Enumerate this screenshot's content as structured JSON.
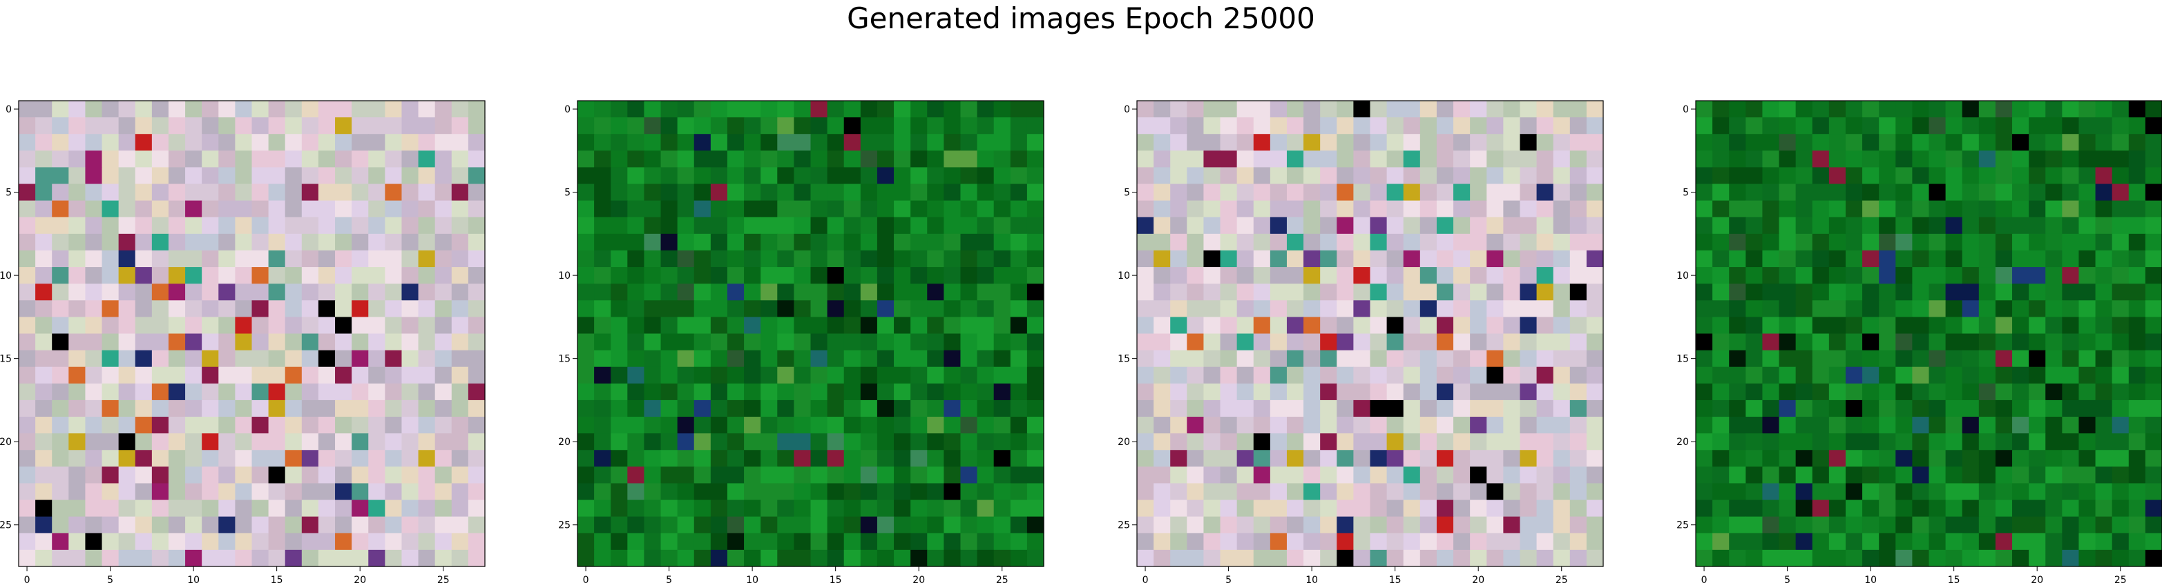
{
  "figure": {
    "suptitle": "Generated images Epoch 25000"
  },
  "chart_data": {
    "type": "heatmap",
    "title": "Generated images Epoch 25000",
    "panels": [
      {
        "name": "",
        "image_size": 28,
        "palette": "pastel",
        "xticks": [
          "0",
          "5",
          "10",
          "15",
          "20",
          "25"
        ],
        "yticks": [
          "0",
          "5",
          "10",
          "15",
          "20",
          "25"
        ],
        "xlim": [
          -0.5,
          27.5
        ],
        "ylim": [
          27.5,
          -0.5
        ]
      },
      {
        "name": "",
        "image_size": 28,
        "palette": "green",
        "xticks": [
          "0",
          "5",
          "10",
          "15",
          "20",
          "25"
        ],
        "yticks": [
          "0",
          "5",
          "10",
          "15",
          "20",
          "25"
        ],
        "xlim": [
          -0.5,
          27.5
        ],
        "ylim": [
          27.5,
          -0.5
        ]
      },
      {
        "name": "",
        "image_size": 28,
        "palette": "pastel",
        "xticks": [
          "0",
          "5",
          "10",
          "15",
          "20",
          "25"
        ],
        "yticks": [
          "0",
          "5",
          "10",
          "15",
          "20",
          "25"
        ],
        "xlim": [
          -0.5,
          27.5
        ],
        "ylim": [
          27.5,
          -0.5
        ]
      },
      {
        "name": "",
        "image_size": 28,
        "palette": "green",
        "xticks": [
          "0",
          "5",
          "10",
          "15",
          "20",
          "25"
        ],
        "yticks": [
          "0",
          "5",
          "10",
          "15",
          "20",
          "25"
        ],
        "xlim": [
          -0.5,
          27.5
        ],
        "ylim": [
          27.5,
          -0.5
        ]
      }
    ],
    "palettes": {
      "pastel": [
        "#d8c8d8",
        "#c8d0c0",
        "#e0d0e8",
        "#b8c8b0",
        "#e8d8c0",
        "#d0b8c8",
        "#c0c8d8",
        "#e8c8d8",
        "#b8b0c0",
        "#d8e0c8",
        "#f0e0e8",
        "#c8b8d0"
      ],
      "green": [
        "#0a7a1e",
        "#0e8a26",
        "#066a18",
        "#12962c",
        "#04581a",
        "#0a6e20",
        "#18a030",
        "#0c5c14",
        "#0f8224",
        "#045010",
        "#1a8c2a",
        "#0b7420"
      ]
    },
    "accents": {
      "pastel": [
        "#8b1a4a",
        "#1a2a6a",
        "#000000",
        "#c81e1e",
        "#4a9a8a",
        "#c8a81a",
        "#6a3a8a",
        "#d86a2a",
        "#2aa88a",
        "#9a1a6a"
      ],
      "green": [
        "#001a06",
        "#0a1a4a",
        "#1a6a6a",
        "#000000",
        "#3a8a5a",
        "#8a1a3a",
        "#0a0a2a",
        "#5aa040",
        "#2a5a30",
        "#1a3a7a"
      ]
    }
  }
}
